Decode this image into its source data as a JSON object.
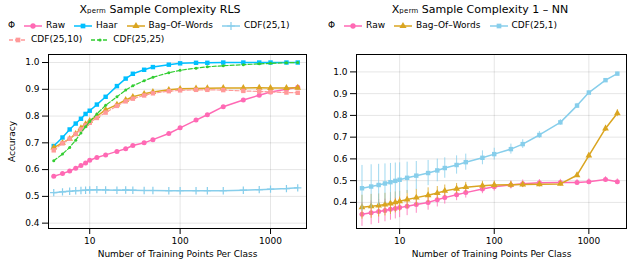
{
  "chart_data": [
    {
      "type": "line",
      "title": "Xₚₑᵣₘ Sample Complexity RLS",
      "xlabel": "Number of Training Points Per Class",
      "ylabel": "Accuracy",
      "log": "x",
      "grid": true,
      "legend": "upper left",
      "legend_title": "Φ",
      "xlim": [
        3.5,
        2500
      ],
      "xticks": [
        10,
        100,
        1000
      ],
      "ylim": [
        0.38,
        1.03
      ],
      "yticks": [
        0.4,
        0.5,
        0.6,
        0.7,
        0.8,
        0.9,
        {
          "value": 1.0,
          "label": "1.0"
        }
      ],
      "x": [
        4,
        5,
        6,
        7,
        8,
        9,
        10,
        12,
        15,
        20,
        25,
        30,
        40,
        50,
        75,
        100,
        150,
        200,
        300,
        500,
        750,
        1000,
        1500,
        2000
      ],
      "series": [
        {
          "name": "Raw",
          "color": "#FF69B4",
          "marker": "circle",
          "line_style": "solid",
          "values": [
            0.575,
            0.585,
            0.595,
            0.605,
            0.615,
            0.625,
            0.635,
            0.645,
            0.655,
            0.668,
            0.678,
            0.69,
            0.7,
            0.712,
            0.735,
            0.756,
            0.785,
            0.805,
            0.835,
            0.86,
            0.878,
            0.89,
            0.9,
            0.908
          ]
        },
        {
          "name": "Haar",
          "color": "#00BFFF",
          "marker": "square",
          "line_style": "solid",
          "values": [
            0.688,
            0.72,
            0.75,
            0.772,
            0.79,
            0.808,
            0.82,
            0.843,
            0.872,
            0.912,
            0.94,
            0.958,
            0.973,
            0.983,
            0.992,
            0.997,
            0.999,
            0.999,
            1.0,
            1.0,
            1.0,
            1.0,
            1.0,
            1.0
          ]
        },
        {
          "name": "Bag–Of–Words",
          "color": "#DAA520",
          "marker": "triangle",
          "line_style": "solid",
          "values": [
            0.682,
            0.7,
            0.715,
            0.733,
            0.755,
            0.77,
            0.782,
            0.8,
            0.823,
            0.843,
            0.86,
            0.872,
            0.883,
            0.89,
            0.898,
            0.902,
            0.903,
            0.904,
            0.905,
            0.905,
            0.906,
            0.905,
            0.905,
            0.906
          ]
        },
        {
          "name": "CDF(25,1)",
          "color": "#87CEEB",
          "marker": "plus",
          "line_style": "solid",
          "values": [
            0.514,
            0.517,
            0.519,
            0.521,
            0.522,
            0.523,
            0.524,
            0.525,
            0.524,
            0.523,
            0.524,
            0.523,
            0.522,
            0.522,
            0.521,
            0.521,
            0.521,
            0.521,
            0.521,
            0.523,
            0.525,
            0.527,
            0.529,
            0.532
          ]
        },
        {
          "name": "CDF(25,10)",
          "color": "#FF9999",
          "marker": "square",
          "line_style": "dashed",
          "values": [
            0.672,
            0.698,
            0.715,
            0.733,
            0.75,
            0.765,
            0.775,
            0.793,
            0.813,
            0.838,
            0.855,
            0.865,
            0.877,
            0.885,
            0.893,
            0.896,
            0.898,
            0.898,
            0.897,
            0.894,
            0.892,
            0.89,
            0.888,
            0.887
          ]
        },
        {
          "name": "CDF(25,25)",
          "color": "#32CD32",
          "marker": "point",
          "line_style": "dashed",
          "values": [
            0.633,
            0.658,
            0.683,
            0.71,
            0.737,
            0.76,
            0.78,
            0.808,
            0.84,
            0.872,
            0.897,
            0.913,
            0.932,
            0.945,
            0.962,
            0.971,
            0.979,
            0.984,
            0.988,
            0.992,
            0.995,
            0.997,
            0.999,
            1.0
          ]
        }
      ]
    },
    {
      "type": "line",
      "title": "Xₚₑᵣₘ Sample Complexity 1 – NN",
      "xlabel": "Number of Training Points Per Class",
      "log": "x",
      "grid": true,
      "legend": "upper left",
      "legend_title": "Φ",
      "xlim": [
        3.5,
        2500
      ],
      "xticks": [
        10,
        100,
        1000
      ],
      "ylim": [
        0.28,
        1.08
      ],
      "yticks": [
        0.4,
        0.5,
        0.6,
        0.7,
        0.8,
        0.9,
        {
          "value": 1.0,
          "label": "1.0"
        }
      ],
      "x": [
        4,
        5,
        6,
        7,
        8,
        9,
        10,
        12,
        15,
        20,
        25,
        30,
        40,
        50,
        75,
        100,
        150,
        200,
        300,
        500,
        750,
        1000,
        1500,
        2000
      ],
      "series": [
        {
          "name": "Raw",
          "color": "#FF69B4",
          "marker": "circle",
          "line_style": "solid",
          "values": [
            0.345,
            0.352,
            0.358,
            0.363,
            0.368,
            0.372,
            0.376,
            0.382,
            0.39,
            0.4,
            0.412,
            0.422,
            0.435,
            0.445,
            0.462,
            0.472,
            0.48,
            0.486,
            0.49,
            0.492,
            0.492,
            0.495,
            0.505,
            0.495
          ],
          "yerr": [
            0.055,
            0.055,
            0.055,
            0.052,
            0.05,
            0.048,
            0.046,
            0.043,
            0.04,
            0.036,
            0.033,
            0.03,
            0.027,
            0.025,
            0.022,
            0.02,
            0.018,
            0.017,
            0.015,
            0.014,
            0.013,
            0.013,
            0.013,
            0.013
          ]
        },
        {
          "name": "Bag–Of–Words",
          "color": "#DAA520",
          "marker": "triangle",
          "line_style": "solid",
          "values": [
            0.378,
            0.382,
            0.386,
            0.39,
            0.395,
            0.4,
            0.405,
            0.413,
            0.422,
            0.433,
            0.443,
            0.453,
            0.463,
            0.47,
            0.477,
            0.48,
            0.481,
            0.482,
            0.483,
            0.485,
            0.525,
            0.615,
            0.74,
            0.81
          ],
          "yerr": [
            0.055,
            0.055,
            0.053,
            0.052,
            0.05,
            0.048,
            0.046,
            0.042,
            0.038,
            0.034,
            0.03,
            0.027,
            0.024,
            0.022,
            0.02,
            0.018,
            0.016,
            0.014,
            0.012,
            0.01,
            0.01,
            0.012,
            0.014,
            0.016
          ]
        },
        {
          "name": "CDF(25,1)",
          "color": "#87CEEB",
          "marker": "square",
          "line_style": "solid",
          "values": [
            0.465,
            0.473,
            0.48,
            0.487,
            0.493,
            0.499,
            0.504,
            0.513,
            0.523,
            0.535,
            0.547,
            0.558,
            0.572,
            0.585,
            0.605,
            0.622,
            0.645,
            0.668,
            0.71,
            0.768,
            0.845,
            0.905,
            0.962,
            0.992
          ],
          "yerr": [
            0.105,
            0.1,
            0.095,
            0.09,
            0.086,
            0.082,
            0.078,
            0.072,
            0.065,
            0.058,
            0.052,
            0.047,
            0.042,
            0.037,
            0.032,
            0.027,
            0.023,
            0.02,
            0.016,
            0.013,
            0.01,
            0.009,
            0.007,
            0.006
          ]
        }
      ]
    }
  ]
}
